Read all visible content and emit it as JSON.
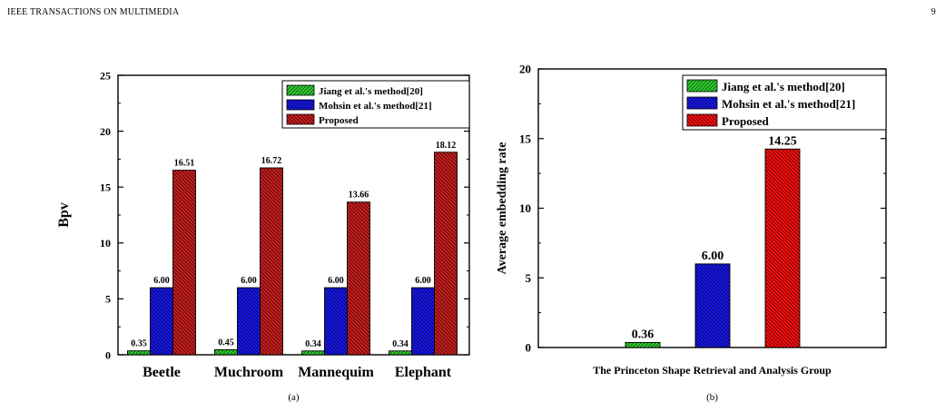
{
  "page": {
    "header_left": "IEEE TRANSACTIONS ON MULTIMEDIA",
    "header_right": "9"
  },
  "colors": {
    "jiang": "#33cc33",
    "mohsin": "#1a1aee",
    "proposed_a": "#cc2222",
    "proposed_b": "#ff1111"
  },
  "chart_data": [
    {
      "type": "bar",
      "caption": "(a)",
      "ylabel": "Bpv",
      "xlabel": "",
      "ylim": [
        0,
        25
      ],
      "yticks": [
        0,
        5,
        10,
        15,
        20,
        25
      ],
      "categories": [
        "Beetle",
        "Muchroom",
        "Mannequim",
        "Elephant"
      ],
      "legend_position": "top-right",
      "series": [
        {
          "name": "Jiang et al.'s method[20]",
          "values": [
            0.35,
            0.45,
            0.34,
            0.34
          ],
          "labels": [
            "0.35",
            "0.45",
            "0.34",
            "0.34"
          ],
          "pattern": "forward-hatch",
          "color": "#33cc33"
        },
        {
          "name": "Mohsin et al.'s method[21]",
          "values": [
            6.0,
            6.0,
            6.0,
            6.0
          ],
          "labels": [
            "6.00",
            "6.00",
            "6.00",
            "6.00"
          ],
          "pattern": "back-hatch",
          "color": "#1a1aee"
        },
        {
          "name": "Proposed",
          "values": [
            16.51,
            16.72,
            13.66,
            18.12
          ],
          "labels": [
            "16.51",
            "16.72",
            "13.66",
            "18.12"
          ],
          "pattern": "back-hatch",
          "color": "#cc2222"
        }
      ]
    },
    {
      "type": "bar",
      "caption": "(b)",
      "ylabel": "Average embedding rate",
      "xlabel": "The Princeton Shape Retrieval and Analysis Group",
      "ylim": [
        0,
        20
      ],
      "yticks": [
        0,
        5,
        10,
        15,
        20
      ],
      "categories": [
        ""
      ],
      "legend_position": "top-right",
      "series": [
        {
          "name": "Jiang et al.'s method[20]",
          "values": [
            0.36
          ],
          "labels": [
            "0.36"
          ],
          "pattern": "forward-hatch",
          "color": "#33cc33"
        },
        {
          "name": "Mohsin et al.'s method[21]",
          "values": [
            6.0
          ],
          "labels": [
            "6.00"
          ],
          "pattern": "back-hatch",
          "color": "#1a1aee"
        },
        {
          "name": "Proposed",
          "values": [
            14.25
          ],
          "labels": [
            "14.25"
          ],
          "pattern": "back-hatch",
          "color": "#ff1111"
        }
      ]
    }
  ]
}
